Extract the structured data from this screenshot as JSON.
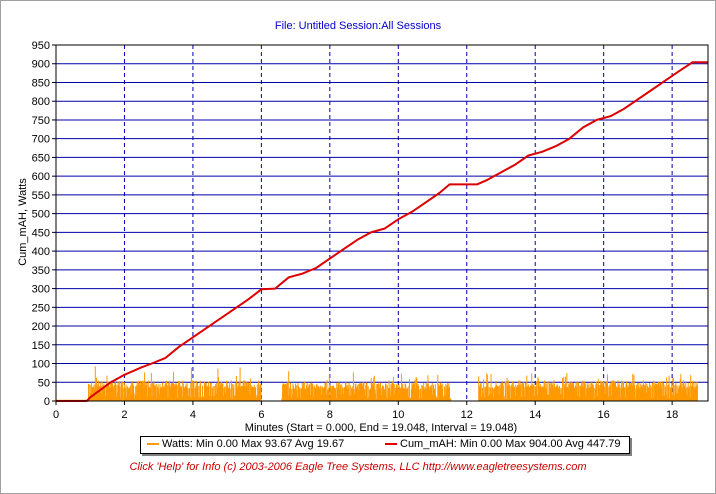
{
  "window": {
    "title": "File: Untitled   Session:All Sessions",
    "footer": "Click 'Help' for Info  (c) 2003-2006 Eagle Tree Systems, LLC    http://www.eagletreesystems.com"
  },
  "colors": {
    "watts": "#ff9900",
    "cum_mah": "#dd0000",
    "grid_h": "#0000aa",
    "grid_v": "#0000aa",
    "plot_bg": "#ffffff"
  },
  "legend": {
    "watts_label": "Watts:  Min 0.00 Max 93.67 Avg 19.67",
    "mah_label": "Cum_mAH:  Min 0.00 Max 904.00 Avg 447.79"
  },
  "chart_data": {
    "type": "line",
    "xlabel": "Minutes (Start = 0.000,  End = 19.048,  Interval =  19.048)",
    "ylabel": "Cum_mAH, Watts",
    "xlim": [
      0,
      19.048
    ],
    "ylim": [
      0,
      950
    ],
    "x_ticks": [
      0,
      2,
      4,
      6,
      8,
      10,
      12,
      14,
      16,
      18
    ],
    "y_ticks": [
      0,
      50,
      100,
      150,
      200,
      250,
      300,
      350,
      400,
      450,
      500,
      550,
      600,
      650,
      700,
      750,
      800,
      850,
      900,
      950
    ],
    "grid": true,
    "legend_position": "bottom",
    "series": [
      {
        "name": "Cum_mAH",
        "kind": "line",
        "points": [
          [
            0,
            0
          ],
          [
            0.9,
            0
          ],
          [
            1.0,
            10
          ],
          [
            1.3,
            30
          ],
          [
            1.6,
            50
          ],
          [
            2.0,
            70
          ],
          [
            2.5,
            90
          ],
          [
            2.8,
            100
          ],
          [
            3.2,
            115
          ],
          [
            3.6,
            145
          ],
          [
            4.0,
            170
          ],
          [
            4.4,
            195
          ],
          [
            4.8,
            220
          ],
          [
            5.2,
            245
          ],
          [
            5.6,
            270
          ],
          [
            6.0,
            298
          ],
          [
            6.4,
            300
          ],
          [
            6.8,
            330
          ],
          [
            7.2,
            340
          ],
          [
            7.6,
            355
          ],
          [
            8.0,
            380
          ],
          [
            8.4,
            405
          ],
          [
            8.8,
            430
          ],
          [
            9.2,
            450
          ],
          [
            9.6,
            460
          ],
          [
            10.0,
            485
          ],
          [
            10.4,
            505
          ],
          [
            10.8,
            530
          ],
          [
            11.2,
            555
          ],
          [
            11.5,
            578
          ],
          [
            12.3,
            578
          ],
          [
            12.6,
            590
          ],
          [
            13.0,
            610
          ],
          [
            13.4,
            630
          ],
          [
            13.8,
            655
          ],
          [
            14.2,
            665
          ],
          [
            14.6,
            680
          ],
          [
            15.0,
            700
          ],
          [
            15.4,
            730
          ],
          [
            15.8,
            750
          ],
          [
            16.2,
            760
          ],
          [
            16.6,
            780
          ],
          [
            17.0,
            805
          ],
          [
            17.4,
            830
          ],
          [
            17.8,
            855
          ],
          [
            18.2,
            880
          ],
          [
            18.6,
            904
          ],
          [
            19.048,
            904
          ]
        ]
      },
      {
        "name": "Watts",
        "kind": "bars",
        "active_segments": [
          {
            "start": 0.95,
            "end": 6.0,
            "typical": 55,
            "max": 93.67
          },
          {
            "start": 6.6,
            "end": 11.55,
            "typical": 50,
            "max": 80
          },
          {
            "start": 12.35,
            "end": 18.75,
            "typical": 55,
            "max": 75
          }
        ],
        "min": 0.0,
        "avg": 19.67
      }
    ]
  }
}
